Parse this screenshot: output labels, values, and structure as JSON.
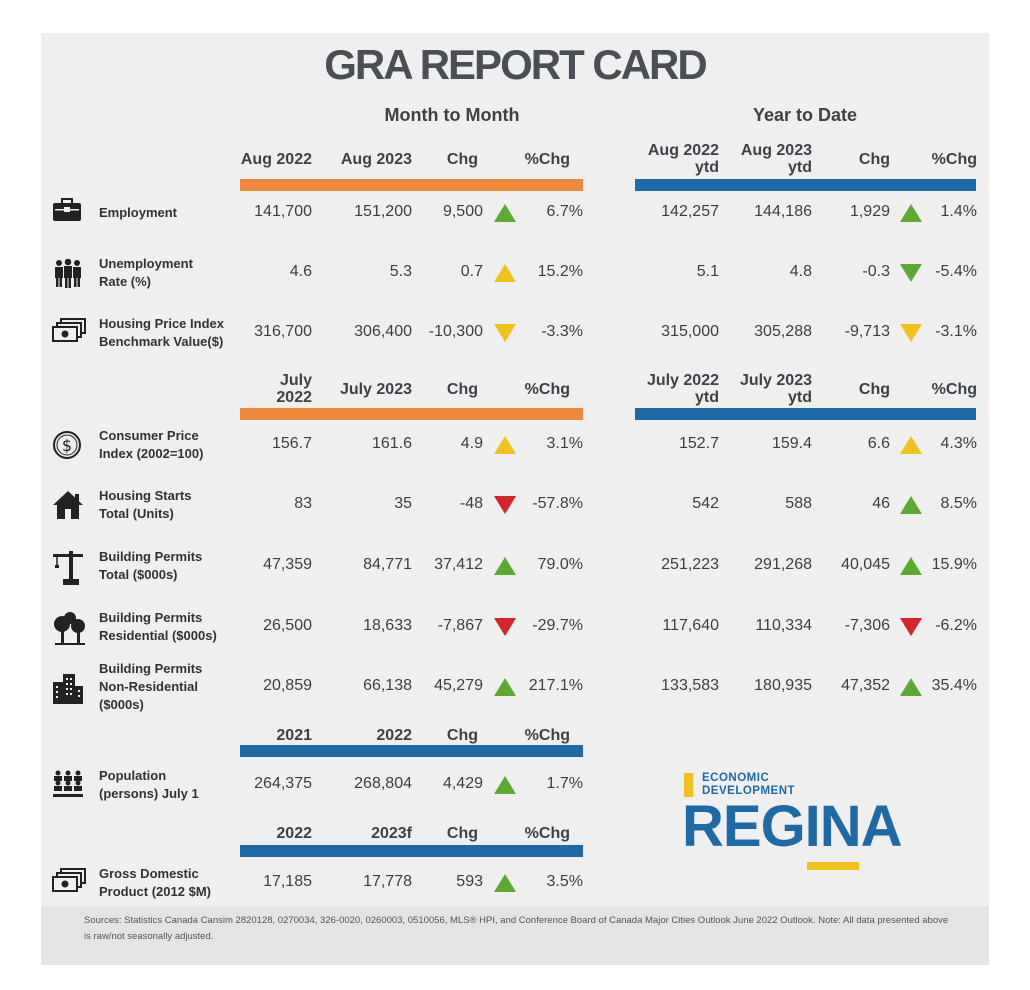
{
  "title": "GRA REPORT CARD",
  "sections": {
    "mtm": "Month to Month",
    "ytd": "Year to Date"
  },
  "headers": {
    "a": [
      "Aug 2022",
      "Aug 2023",
      "Chg",
      "%Chg"
    ],
    "ay": [
      "Aug 2022\nytd",
      "Aug 2023\nytd",
      "Chg",
      "%Chg"
    ],
    "b": [
      "July\n2022",
      "July 2023",
      "Chg",
      "%Chg"
    ],
    "by": [
      "July 2022\nytd",
      "July 2023\nytd",
      "Chg",
      "%Chg"
    ],
    "c": [
      "2021",
      "2022",
      "Chg",
      "%Chg"
    ],
    "d": [
      "2022",
      "2023f",
      "Chg",
      "%Chg"
    ]
  },
  "rows": [
    {
      "label": "Employment",
      "icon": "briefcase-icon",
      "m": [
        "141,700",
        "151,200",
        "9,500",
        "6.7%"
      ],
      "mt": "up-green",
      "y": [
        "142,257",
        "144,186",
        "1,929",
        "1.4%"
      ],
      "yt": "up-green"
    },
    {
      "label": "Unemployment\nRate (%)",
      "icon": "people-icon",
      "m": [
        "4.6",
        "5.3",
        "0.7",
        "15.2%"
      ],
      "mt": "up-yellow",
      "y": [
        "5.1",
        "4.8",
        "-0.3",
        "-5.4%"
      ],
      "yt": "down-green"
    },
    {
      "label": "Housing Price Index\nBenchmark Value($)",
      "icon": "money-icon",
      "m": [
        "316,700",
        "306,400",
        "-10,300",
        "-3.3%"
      ],
      "mt": "down-yellow",
      "y": [
        "315,000",
        "305,288",
        "-9,713",
        "-3.1%"
      ],
      "yt": "down-yellow"
    },
    {
      "label": "Consumer Price\nIndex (2002=100)",
      "icon": "dollar-coin-icon",
      "m": [
        "156.7",
        "161.6",
        "4.9",
        "3.1%"
      ],
      "mt": "up-yellow",
      "y": [
        "152.7",
        "159.4",
        "6.6",
        "4.3%"
      ],
      "yt": "up-yellow"
    },
    {
      "label": "Housing Starts\nTotal (Units)",
      "icon": "house-icon",
      "m": [
        "83",
        "35",
        "-48",
        "-57.8%"
      ],
      "mt": "down-red",
      "y": [
        "542",
        "588",
        "46",
        "8.5%"
      ],
      "yt": "up-green"
    },
    {
      "label": "Building Permits\nTotal ($000s)",
      "icon": "crane-icon",
      "m": [
        "47,359",
        "84,771",
        "37,412",
        "79.0%"
      ],
      "mt": "up-green",
      "y": [
        "251,223",
        "291,268",
        "40,045",
        "15.9%"
      ],
      "yt": "up-green"
    },
    {
      "label": "Building Permits\nResidential ($000s)",
      "icon": "trees-icon",
      "m": [
        "26,500",
        "18,633",
        "-7,867",
        "-29.7%"
      ],
      "mt": "down-red",
      "y": [
        "117,640",
        "110,334",
        "-7,306",
        "-6.2%"
      ],
      "yt": "down-red"
    },
    {
      "label": "Building Permits\nNon-Residential\n($000s)",
      "icon": "buildings-icon",
      "m": [
        "20,859",
        "66,138",
        "45,279",
        "217.1%"
      ],
      "mt": "up-green",
      "y": [
        "133,583",
        "180,935",
        "47,352",
        "35.4%"
      ],
      "yt": "up-green"
    },
    {
      "label": "Population\n(persons) July 1",
      "icon": "population-icon",
      "m": [
        "264,375",
        "268,804",
        "4,429",
        "1.7%"
      ],
      "mt": "up-green"
    },
    {
      "label": "Gross Domestic\nProduct (2012 $M)",
      "icon": "money-icon",
      "m": [
        "17,185",
        "17,778",
        "593",
        "3.5%"
      ],
      "mt": "up-green"
    }
  ],
  "logo": {
    "line1": "ECONOMIC",
    "line2": "DEVELOPMENT",
    "word": "REGINA"
  },
  "colors": {
    "orange": "#f0883a",
    "blue": "#1c6aa8",
    "green": "#5cab2e",
    "red": "#d8232a",
    "yellow": "#f3c21a"
  },
  "sources": "Sources: Statistics Canada Cansim 2820128, 0270034, 326-0020, 0260003, 0510056, MLS® HPI, and Conference Board of Canada Major Cities Outlook June 2022 Outlook. Note: All data presented above is raw/not seasonally adjusted."
}
